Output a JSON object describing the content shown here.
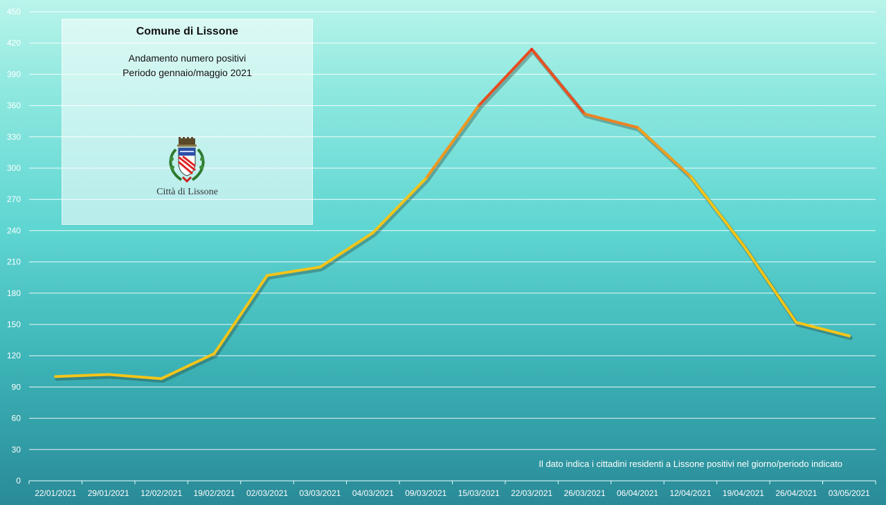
{
  "title_box": {
    "title": "Comune di Lissone",
    "subtitle_line1": "Andamento numero positivi",
    "subtitle_line2": "Periodo gennaio/maggio 2021",
    "logo_icon": "lissone-coat-of-arms-icon",
    "logo_caption": "Città di Lissone"
  },
  "note": "Il dato indica i cittadini residenti a Lissone positivi nel giorno/periodo indicato",
  "chart_data": {
    "type": "line",
    "title": "Comune di Lissone",
    "subtitle": "Andamento numero positivi — Periodo gennaio/maggio 2021",
    "xlabel": "",
    "ylabel": "",
    "categories": [
      "22/01/2021",
      "29/01/2021",
      "12/02/2021",
      "19/02/2021",
      "02/03/2021",
      "03/03/2021",
      "04/03/2021",
      "09/03/2021",
      "15/03/2021",
      "22/03/2021",
      "26/03/2021",
      "06/04/2021",
      "12/04/2021",
      "19/04/2021",
      "26/04/2021",
      "03/05/2021"
    ],
    "series": [
      {
        "values": [
          100,
          102,
          98,
          122,
          197,
          205,
          238,
          290,
          360,
          414,
          352,
          339,
          292,
          226,
          152,
          139
        ]
      }
    ],
    "ylim": [
      0,
      450
    ],
    "yticks": [
      0,
      30,
      60,
      90,
      120,
      150,
      180,
      210,
      240,
      270,
      300,
      330,
      360,
      390,
      420,
      450
    ],
    "grid": true,
    "legend": "none",
    "colors": {
      "low": "#f5c518",
      "mid": "#ee8a22",
      "high": "#e62e1e"
    }
  }
}
